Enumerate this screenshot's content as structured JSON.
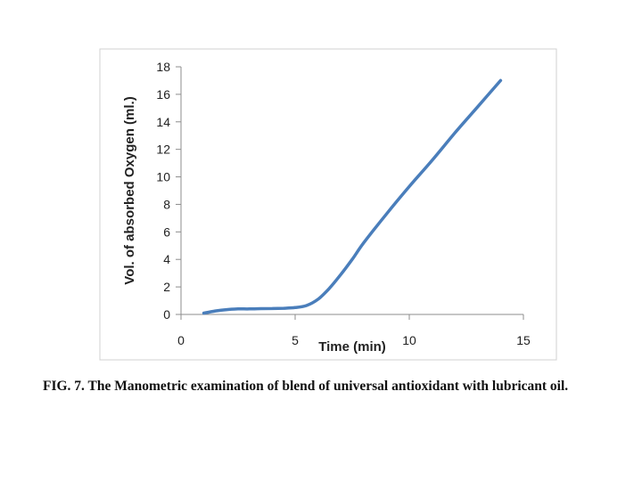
{
  "chart_data": {
    "type": "line",
    "title": "",
    "xlabel": "Time (min)",
    "ylabel": "Vol. of absorbed Oxygen (ml.)",
    "xlim": [
      0,
      15
    ],
    "ylim": [
      0,
      18
    ],
    "x_ticks": [
      0,
      5,
      10,
      15
    ],
    "y_ticks": [
      0,
      2,
      4,
      6,
      8,
      10,
      12,
      14,
      16,
      18
    ],
    "grid": false,
    "legend": "none",
    "series": [
      {
        "color": "#4a7ebb",
        "x": [
          1,
          1.5,
          2,
          2.5,
          3,
          3.5,
          4,
          4.5,
          5,
          5.5,
          6,
          6.5,
          7,
          7.5,
          8,
          9,
          10,
          11,
          12,
          13,
          14
        ],
        "y": [
          0.1,
          0.25,
          0.35,
          0.4,
          0.4,
          0.42,
          0.43,
          0.45,
          0.5,
          0.65,
          1.1,
          1.9,
          2.9,
          4.0,
          5.2,
          7.3,
          9.3,
          11.2,
          13.2,
          15.1,
          17.0
        ]
      }
    ]
  },
  "caption": "FIG. 7. The Manometric examination of blend of universal antioxidant with lubricant oil."
}
